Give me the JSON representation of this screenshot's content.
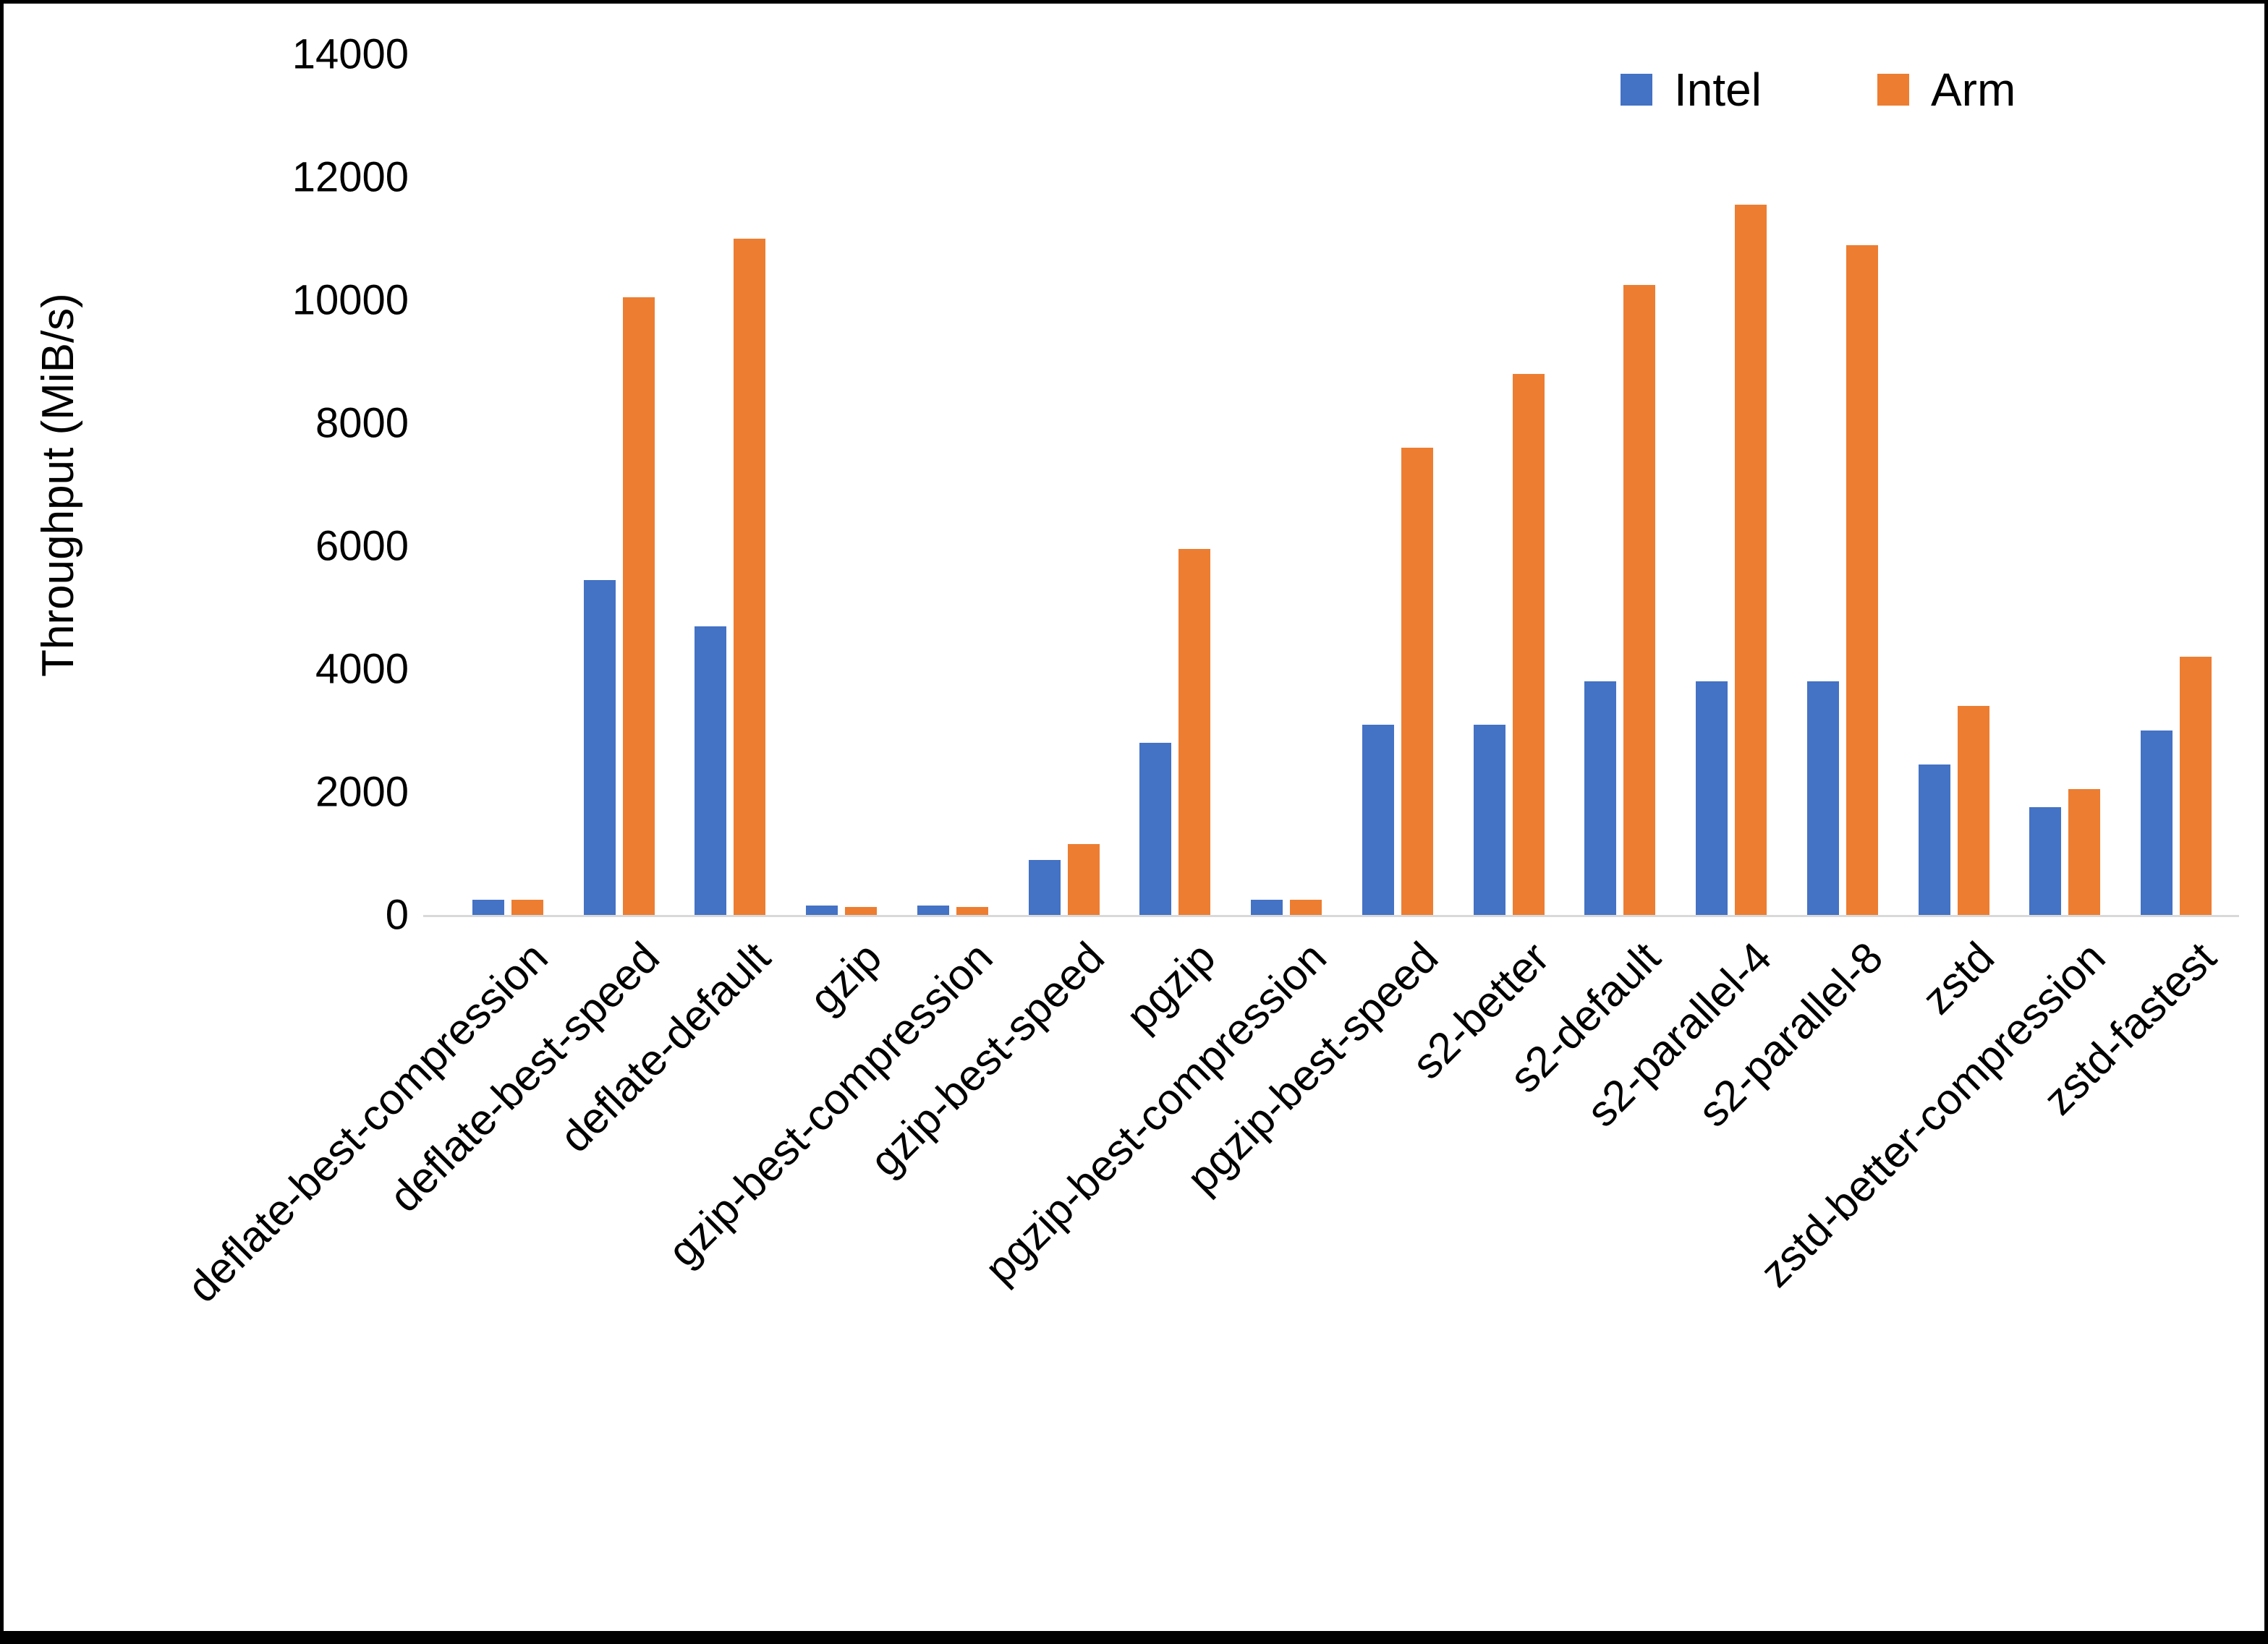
{
  "chart_data": {
    "type": "bar",
    "ylabel": "Throughput (MiB/s)",
    "xlabel": "",
    "ylim": [
      0,
      14000
    ],
    "yticks": [
      0,
      2000,
      4000,
      6000,
      8000,
      10000,
      12000,
      14000
    ],
    "grid": false,
    "legend_position": "top-right",
    "categories": [
      "deflate-best-compression",
      "deflate-best-speed",
      "deflate-default",
      "gzip",
      "gzip-best-compression",
      "gzip-best-speed",
      "pgzip",
      "pgzip-best-compression",
      "pgzip-best-speed",
      "s2-better",
      "s2-default",
      "s2-parallel-4",
      "s2-parallel-8",
      "zstd",
      "zstd-better-compression",
      "zstd-fastest"
    ],
    "series": [
      {
        "name": "Intel",
        "color": "#4472C4",
        "values": [
          250,
          5450,
          4700,
          150,
          150,
          900,
          2800,
          250,
          3100,
          3100,
          3800,
          3800,
          3800,
          2450,
          1750,
          3000
        ]
      },
      {
        "name": "Arm",
        "color": "#ED7D31",
        "values": [
          250,
          10050,
          11000,
          130,
          130,
          1150,
          5950,
          250,
          7600,
          8800,
          10250,
          11550,
          10900,
          3400,
          2050,
          4200
        ]
      }
    ]
  }
}
